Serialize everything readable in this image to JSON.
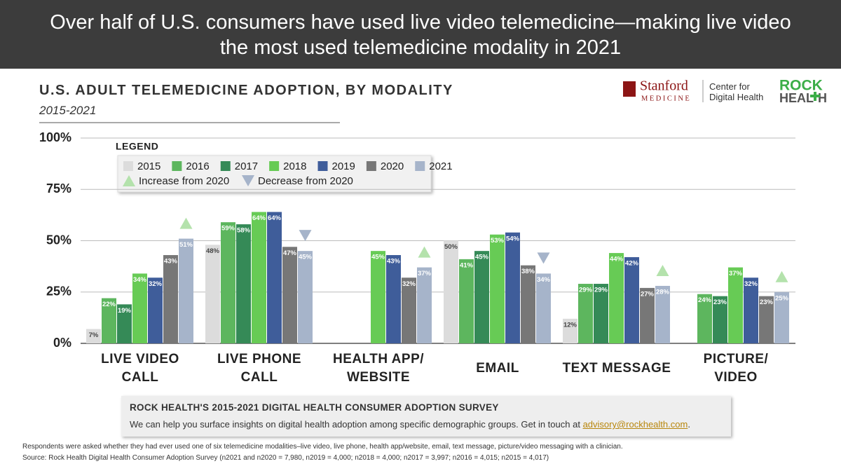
{
  "header": {
    "title": "Over half of U.S. consumers have used live video telemedicine—making live video\nthe most used telemedicine modality in 2021"
  },
  "logos": {
    "stanford": "Stanford",
    "medicine": "MEDICINE",
    "center": "Center for\nDigital Health",
    "rock": "ROCK",
    "heal": "HEAL",
    "h": "H"
  },
  "chart_data": {
    "type": "bar",
    "title": "U.S. ADULT TELEMEDICINE ADOPTION, BY MODALITY",
    "subtitle": "2015-2021",
    "legend_title": "LEGEND",
    "increase_label": "Increase from 2020",
    "decrease_label": "Decrease from 2020",
    "increase_color": "#b4e2ac",
    "decrease_color": "#a6b4ca",
    "categories": [
      "LIVE VIDEO\nCALL",
      "LIVE PHONE\nCALL",
      "HEALTH APP/\nWEBSITE",
      "EMAIL",
      "TEXT MESSAGE",
      "PICTURE/\nVIDEO"
    ],
    "series": [
      {
        "name": "2015",
        "color": "#dcdcdc",
        "values": [
          7,
          48,
          null,
          50,
          12,
          null
        ],
        "value_labels": [
          "7%",
          "48%",
          null,
          "50%",
          "12%",
          null
        ]
      },
      {
        "name": "2016",
        "color": "#5db65e",
        "values": [
          22,
          59,
          null,
          41,
          29,
          24
        ],
        "value_labels": [
          "22%",
          "59%",
          null,
          "41%",
          "29%",
          "24%"
        ]
      },
      {
        "name": "2017",
        "color": "#358a57",
        "values": [
          19,
          58,
          null,
          45,
          29,
          23
        ],
        "value_labels": [
          "19%",
          "58%",
          null,
          "45%",
          "29%",
          "23%"
        ]
      },
      {
        "name": "2018",
        "color": "#67cb55",
        "values": [
          34,
          64,
          45,
          53,
          44,
          37
        ],
        "value_labels": [
          "34%",
          "64%",
          "45%",
          "53%",
          "44%",
          "37%"
        ]
      },
      {
        "name": "2019",
        "color": "#3f5d9a",
        "values": [
          32,
          64,
          43,
          54,
          42,
          32
        ],
        "value_labels": [
          "32%",
          "64%",
          "43%",
          "54%",
          "42%",
          "32%"
        ]
      },
      {
        "name": "2020",
        "color": "#777777",
        "values": [
          43,
          47,
          32,
          38,
          27,
          23
        ],
        "value_labels": [
          "43%",
          "47%",
          "32%",
          "38%",
          "27%",
          "23%"
        ]
      },
      {
        "name": "2021",
        "color": "#a6b4ca",
        "values": [
          51,
          45,
          37,
          34,
          28,
          25
        ],
        "value_labels": [
          "51%",
          "45%",
          "37%",
          "34%",
          "28%",
          "25%"
        ]
      }
    ],
    "ylim": [
      0,
      100
    ],
    "yticks": [
      {
        "value": 0,
        "label": "0%"
      },
      {
        "value": 25,
        "label": "25%"
      },
      {
        "value": 50,
        "label": "50%"
      },
      {
        "value": 75,
        "label": "75%"
      },
      {
        "value": 100,
        "label": "100%"
      }
    ],
    "grid": true
  },
  "callout": {
    "title": "ROCK HEALTH'S 2015-2021 DIGITAL HEALTH CONSUMER ADOPTION SURVEY",
    "body": "We can help you surface insights on digital health adoption among specific demographic groups. Get in touch at",
    "email": "advisory@rockhealth.com",
    "end": "."
  },
  "footnotes": {
    "note": "Respondents were asked whether they had ever used one of six telemedicine modalities–live video, live phone, health app/website, email, text message, picture/video messaging with a clinician.",
    "source": "Source: Rock Health Digital Health Consumer Adoption Survey (n2021 and n2020 = 7,980, n2019 = 4,000; n2018 = 4,000; n2017 = 3,997; n2016 = 4,015; n2015 = 4,017)"
  }
}
